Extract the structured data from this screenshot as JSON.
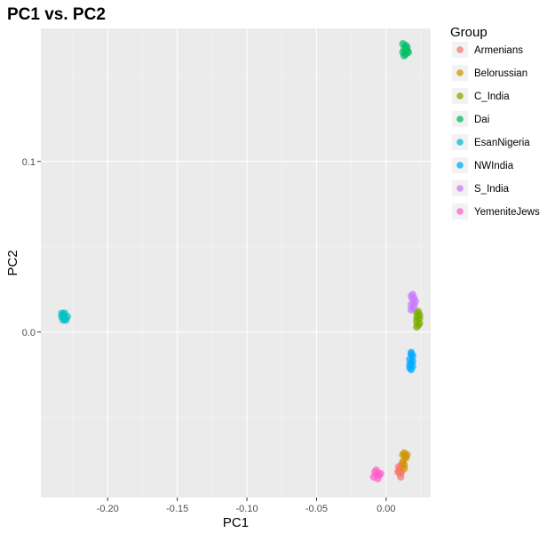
{
  "chart_data": {
    "type": "scatter",
    "title": "PC1 vs. PC2",
    "xlabel": "PC1",
    "ylabel": "PC2",
    "xlim": [
      -0.248,
      0.032
    ],
    "ylim": [
      -0.097,
      0.178
    ],
    "x_ticks": [
      -0.2,
      -0.15,
      -0.1,
      -0.05,
      0.0
    ],
    "x_tick_labels": [
      "-0.20",
      "-0.15",
      "-0.10",
      "-0.05",
      "0.00"
    ],
    "y_ticks": [
      0.0,
      0.1
    ],
    "y_tick_labels": [
      "0.0",
      "0.1"
    ],
    "grid": true,
    "legend_title": "Group",
    "legend_position": "right",
    "series": [
      {
        "name": "Armenians",
        "color": "#F8766D",
        "points": [
          [
            0.009,
            -0.079
          ],
          [
            0.01,
            -0.08
          ],
          [
            0.011,
            -0.078
          ],
          [
            0.0085,
            -0.082
          ],
          [
            0.01,
            -0.083
          ],
          [
            0.012,
            -0.077
          ],
          [
            0.0095,
            -0.081
          ],
          [
            0.011,
            -0.082
          ],
          [
            0.0105,
            -0.085
          ]
        ]
      },
      {
        "name": "Belorussian",
        "color": "#CD9600",
        "points": [
          [
            0.012,
            -0.072
          ],
          [
            0.013,
            -0.071
          ],
          [
            0.014,
            -0.074
          ],
          [
            0.012,
            -0.076
          ],
          [
            0.013,
            -0.078
          ],
          [
            0.014,
            -0.073
          ],
          [
            0.015,
            -0.072
          ],
          [
            0.013,
            -0.08
          ]
        ]
      },
      {
        "name": "C_India",
        "color": "#7CAE00",
        "points": [
          [
            0.022,
            0.011
          ],
          [
            0.023,
            0.009
          ],
          [
            0.024,
            0.008
          ],
          [
            0.022,
            0.006
          ],
          [
            0.023,
            0.004
          ],
          [
            0.024,
            0.01
          ],
          [
            0.022,
            0.008
          ],
          [
            0.023,
            0.012
          ],
          [
            0.024,
            0.005
          ],
          [
            0.022,
            0.003
          ]
        ]
      },
      {
        "name": "Dai",
        "color": "#00BE67",
        "points": [
          [
            0.012,
            0.169
          ],
          [
            0.014,
            0.168
          ],
          [
            0.013,
            0.166
          ],
          [
            0.015,
            0.165
          ],
          [
            0.012,
            0.164
          ],
          [
            0.014,
            0.163
          ],
          [
            0.016,
            0.164
          ],
          [
            0.013,
            0.162
          ],
          [
            0.015,
            0.167
          ]
        ]
      },
      {
        "name": "EsanNigeria",
        "color": "#00BFC4",
        "points": [
          [
            -0.232,
            0.01
          ],
          [
            -0.231,
            0.008
          ],
          [
            -0.233,
            0.009
          ],
          [
            -0.23,
            0.007
          ],
          [
            -0.232,
            0.007
          ],
          [
            -0.231,
            0.011
          ],
          [
            -0.229,
            0.009
          ],
          [
            -0.233,
            0.011
          ]
        ]
      },
      {
        "name": "NWIndia",
        "color": "#00A9FF",
        "points": [
          [
            0.018,
            -0.012
          ],
          [
            0.019,
            -0.014
          ],
          [
            0.017,
            -0.016
          ],
          [
            0.018,
            -0.018
          ],
          [
            0.019,
            -0.02
          ],
          [
            0.017,
            -0.021
          ],
          [
            0.018,
            -0.013
          ],
          [
            0.019,
            -0.017
          ],
          [
            0.018,
            -0.022
          ],
          [
            0.017,
            -0.019
          ]
        ]
      },
      {
        "name": "S_India",
        "color": "#C77CFF",
        "points": [
          [
            0.018,
            0.021
          ],
          [
            0.019,
            0.019
          ],
          [
            0.02,
            0.017
          ],
          [
            0.018,
            0.016
          ],
          [
            0.019,
            0.014
          ],
          [
            0.02,
            0.02
          ],
          [
            0.021,
            0.018
          ],
          [
            0.019,
            0.022
          ],
          [
            0.018,
            0.013
          ],
          [
            0.02,
            0.015
          ]
        ]
      },
      {
        "name": "YemeniteJews",
        "color": "#FF61CC",
        "points": [
          [
            -0.008,
            -0.082
          ],
          [
            -0.007,
            -0.084
          ],
          [
            -0.006,
            -0.083
          ],
          [
            -0.009,
            -0.085
          ],
          [
            -0.005,
            -0.084
          ],
          [
            -0.007,
            -0.081
          ],
          [
            -0.006,
            -0.086
          ],
          [
            -0.004,
            -0.083
          ]
        ]
      }
    ]
  }
}
